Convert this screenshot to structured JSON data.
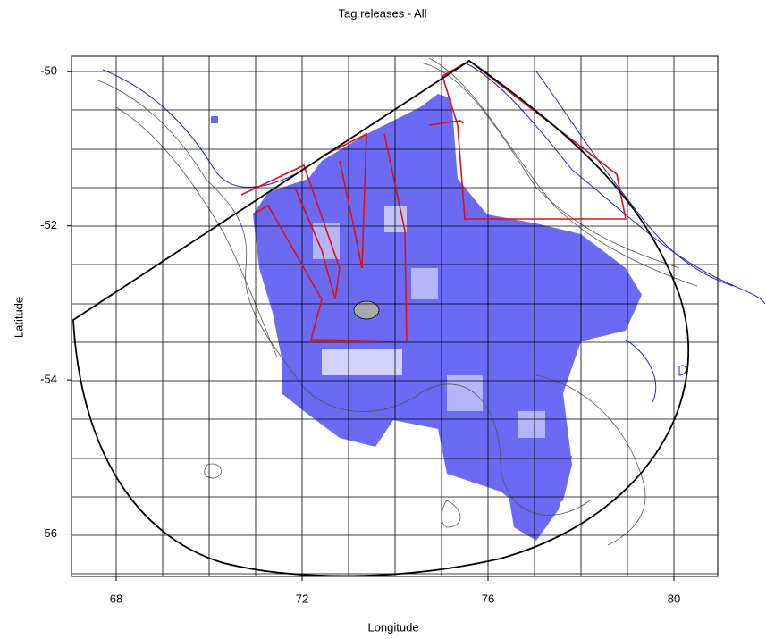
{
  "chart_data": {
    "type": "map",
    "title": "Tag releases - All",
    "xlabel": "Longitude",
    "ylabel": "Latitude",
    "xlim": [
      67,
      81
    ],
    "ylim": [
      -56.55,
      -49.8
    ],
    "xticks": [
      68,
      72,
      76,
      80
    ],
    "yticks": [
      -56,
      -54,
      -52,
      -50
    ]
  }
}
